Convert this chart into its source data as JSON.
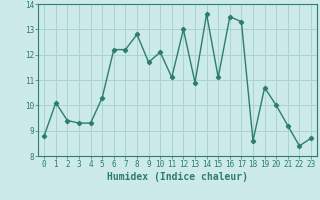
{
  "title": "",
  "xlabel": "Humidex (Indice chaleur)",
  "ylabel": "",
  "x_values": [
    0,
    1,
    2,
    3,
    4,
    5,
    6,
    7,
    8,
    9,
    10,
    11,
    12,
    13,
    14,
    15,
    16,
    17,
    18,
    19,
    20,
    21,
    22,
    23
  ],
  "y_values": [
    8.8,
    10.1,
    9.4,
    9.3,
    9.3,
    10.3,
    12.2,
    12.2,
    12.8,
    11.7,
    12.1,
    11.1,
    13.0,
    10.9,
    13.6,
    11.1,
    13.5,
    13.3,
    8.6,
    10.7,
    10.0,
    9.2,
    8.4,
    8.7
  ],
  "line_color": "#2d7d6f",
  "marker": "D",
  "marker_size": 2.2,
  "line_width": 1.0,
  "bg_color": "#cceae7",
  "grid_color": "#aad4d0",
  "tick_label_color": "#2d7d6f",
  "xlabel_color": "#2d7d6f",
  "ylim": [
    8,
    14
  ],
  "xlim": [
    -0.5,
    23.5
  ],
  "yticks": [
    8,
    9,
    10,
    11,
    12,
    13,
    14
  ],
  "xticks": [
    0,
    1,
    2,
    3,
    4,
    5,
    6,
    7,
    8,
    9,
    10,
    11,
    12,
    13,
    14,
    15,
    16,
    17,
    18,
    19,
    20,
    21,
    22,
    23
  ]
}
